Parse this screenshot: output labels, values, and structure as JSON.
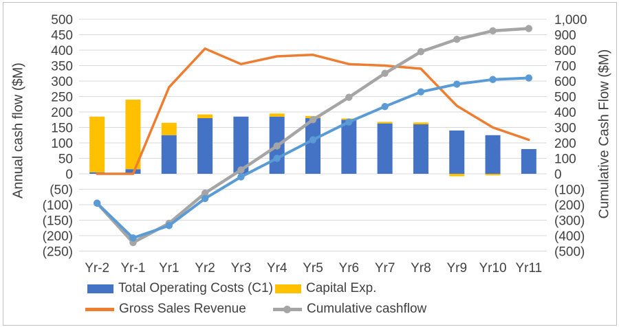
{
  "chart_data": {
    "type": "combo",
    "title": "",
    "categories": [
      "Yr-2",
      "Yr-1",
      "Yr1",
      "Yr2",
      "Yr3",
      "Yr4",
      "Yr5",
      "Yr6",
      "Yr7",
      "Yr8",
      "Yr9",
      "Yr10",
      "Yr11"
    ],
    "series": [
      {
        "name": "Total Operating Costs (C1)",
        "type": "bar",
        "stacked": true,
        "axis": "left",
        "color": "#4472C4",
        "in_legend": true,
        "values": [
          5,
          15,
          125,
          180,
          185,
          185,
          180,
          175,
          163,
          160,
          140,
          125,
          80
        ]
      },
      {
        "name": "Capital Exp.",
        "type": "bar",
        "stacked": true,
        "axis": "left",
        "color": "#FFC000",
        "in_legend": true,
        "values": [
          180,
          225,
          40,
          12,
          0,
          10,
          7,
          4,
          5,
          6,
          -8,
          -5,
          0
        ]
      },
      {
        "name": "Gross Sales Revenue",
        "type": "line",
        "axis": "left",
        "color": "#ED7D31",
        "markers": false,
        "in_legend": true,
        "values": [
          0,
          0,
          280,
          405,
          355,
          380,
          385,
          355,
          350,
          340,
          220,
          150,
          110
        ]
      },
      {
        "name": "Cumulative cashflow",
        "type": "line",
        "axis": "right",
        "color": "#A5A5A5",
        "markers": true,
        "in_legend": true,
        "values": [
          -190,
          -445,
          -320,
          -125,
          25,
          180,
          350,
          495,
          650,
          790,
          870,
          925,
          940
        ]
      },
      {
        "name": "(unlabeled blue line)",
        "type": "line",
        "axis": "right",
        "color": "#5B9BD5",
        "markers": true,
        "in_legend": false,
        "values": [
          -190,
          -415,
          -335,
          -160,
          -20,
          100,
          220,
          335,
          435,
          530,
          580,
          610,
          620
        ]
      }
    ],
    "left_axis": {
      "label": "Annual cash flow ($M)",
      "min": -250,
      "max": 500,
      "step": 50,
      "tick_labels": [
        "500",
        "450",
        "400",
        "350",
        "300",
        "250",
        "200",
        "150",
        "100",
        "50",
        "0",
        "(50)",
        "(100)",
        "(150)",
        "(200)",
        "(250)"
      ]
    },
    "right_axis": {
      "label": "Cumulative Cash Flow ($M)",
      "min": -500,
      "max": 1000,
      "step": 100,
      "tick_labels": [
        "1,000",
        "900",
        "800",
        "700",
        "600",
        "500",
        "400",
        "300",
        "200",
        "100",
        "0",
        "(100)",
        "(200)",
        "(300)",
        "(400)",
        "(500)"
      ]
    },
    "x_axis": {
      "labels": [
        "Yr-2",
        "Yr-1",
        "Yr1",
        "Yr2",
        "Yr3",
        "Yr4",
        "Yr5",
        "Yr6",
        "Yr7",
        "Yr8",
        "Yr9",
        "Yr10",
        "Yr11"
      ]
    },
    "grid": true,
    "legend_position": "bottom",
    "legend": {
      "items": [
        {
          "label": "Total Operating Costs (C1)",
          "color": "#4472C4",
          "swatch": "bar"
        },
        {
          "label": "Capital Exp.",
          "color": "#FFC000",
          "swatch": "bar"
        },
        {
          "label": "Gross Sales Revenue",
          "color": "#ED7D31",
          "swatch": "line"
        },
        {
          "label": "Cumulative cashflow",
          "color": "#A5A5A5",
          "swatch": "line-marker"
        }
      ]
    },
    "colors": {
      "gridline": "#D9D9D9",
      "text": "#404040",
      "border": "#BFBFBF",
      "bar_blue": "#4472C4",
      "bar_yellow": "#FFC000",
      "line_orange": "#ED7D31",
      "line_gray": "#A5A5A5",
      "line_lightblue": "#5B9BD5"
    }
  }
}
